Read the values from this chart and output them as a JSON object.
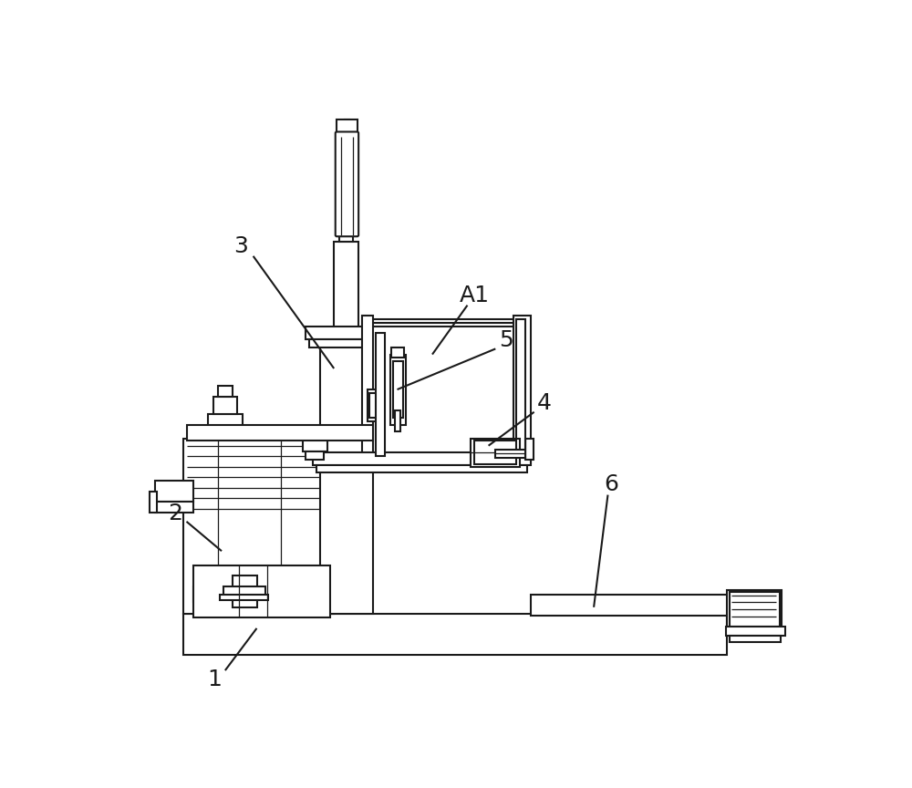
{
  "background_color": "#ffffff",
  "line_color": "#1a1a1a",
  "lw": 1.5,
  "tlw": 0.9,
  "fs": 18
}
